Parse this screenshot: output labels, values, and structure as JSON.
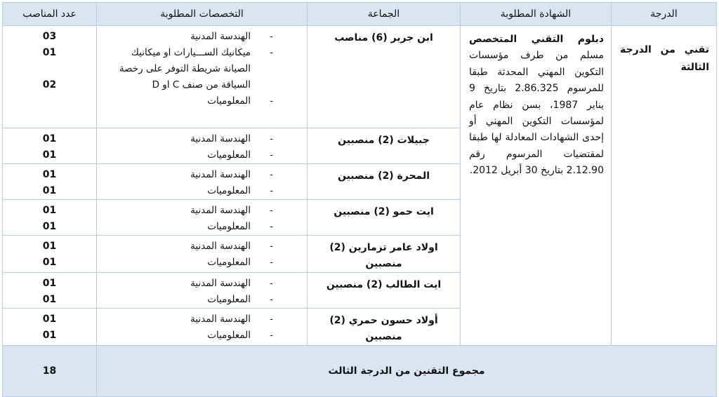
{
  "headers": {
    "grade": "الدرجة",
    "diploma": "الشهادة المطلوبة",
    "commune": "الجماعة",
    "specialties": "التخصصات المطلوبة",
    "positions": "عدد المناصب"
  },
  "grade": "تقني من الدرجة الثالثة",
  "diploma": {
    "bold": "دبلوم التقني المتخصص",
    "text": " مسلم من طرف مؤسسات التكوين المهني المحدثة طبقا للمرسوم 2.86.325 بتاريخ 9 يناير 1987، بسن نظام عام لمؤسسات التكوين المهني أو إحدى الشهادات المعادلة لها طبقا لمقتضيات المرسوم رقم 2.12.90 بتاريخ 30 أبريل 2012."
  },
  "rows": [
    {
      "commune": "ابن جرير (6) مناصب",
      "specialties": [
        "الهندسة المدنية",
        "ميكانيك الســـيارات او ميكانيك الصيانة  شريطة التوفر على رخصة السياقة من صنف C او D",
        "المعلوميات"
      ],
      "positions": [
        "03",
        "01",
        "02"
      ]
    },
    {
      "commune": "جبيلات (2) منصبين",
      "specialties": [
        "الهندسة المدنية",
        "المعلوميات"
      ],
      "positions": [
        "01",
        "01"
      ]
    },
    {
      "commune": "المحرة (2) منصبين",
      "specialties": [
        "الهندسة المدنية",
        "المعلوميات"
      ],
      "positions": [
        "01",
        "01"
      ]
    },
    {
      "commune": "ايت حمو (2) منصبين",
      "specialties": [
        "الهندسة المدنية",
        "المعلوميات"
      ],
      "positions": [
        "01",
        "01"
      ]
    },
    {
      "commune": "اولاد عامر تزمارين (2) منصبين",
      "specialties": [
        "الهندسة المدنية",
        "المعلوميات"
      ],
      "positions": [
        "01",
        "01"
      ]
    },
    {
      "commune": "ايت الطالب (2) منصبين",
      "specialties": [
        "الهندسة المدنية",
        "المعلوميات"
      ],
      "positions": [
        "01",
        "01"
      ]
    },
    {
      "commune": "أولاد حسون حمري (2) منصبين",
      "specialties": [
        "الهندسة المدنية",
        "المعلوميات"
      ],
      "positions": [
        "01",
        "01"
      ]
    }
  ],
  "total": {
    "label": "مجموع التقنين من الدرجة الثالث",
    "value": "18"
  }
}
